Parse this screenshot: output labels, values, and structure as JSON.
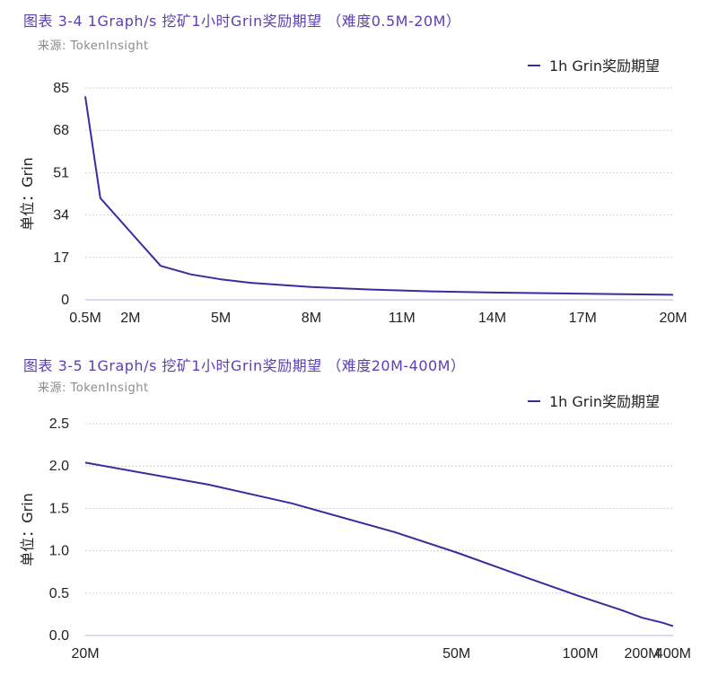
{
  "charts": [
    {
      "title": "图表 3-4 1Graph/s 挖矿1小时Grin奖励期望 （难度0.5M-20M）",
      "source": "来源: TokenInsight"
    },
    {
      "title": "图表 3-5 1Graph/s 挖矿1小时Grin奖励期望 （难度20M-400M）",
      "source": "来源: TokenInsight"
    }
  ],
  "chart_data": [
    {
      "type": "line",
      "title": "图表 3-4 1Graph/s 挖矿1小时Grin奖励期望 （难度0.5M-20M）",
      "xlabel": "",
      "ylabel": "单位：Grin",
      "x_ticks": [
        "0.5M",
        "2M",
        "5M",
        "8M",
        "11M",
        "14M",
        "17M",
        "20M"
      ],
      "y_ticks": [
        "0",
        "17",
        "34",
        "51",
        "68",
        "85"
      ],
      "xlim": [
        0.5,
        20
      ],
      "ylim": [
        0,
        85
      ],
      "grid": true,
      "legend_position": "top-right",
      "line_color": "#3d2b9e",
      "series": [
        {
          "name": "1h Grin奖励期望",
          "x": [
            0.5,
            1,
            2,
            3,
            4,
            5,
            6,
            8,
            10,
            12,
            14,
            16,
            18,
            20
          ],
          "values": [
            81.6,
            40.8,
            27.2,
            13.6,
            10.2,
            8.2,
            6.8,
            5.1,
            4.1,
            3.4,
            2.9,
            2.6,
            2.3,
            2.0
          ]
        }
      ]
    },
    {
      "type": "line",
      "title": "图表 3-5 1Graph/s 挖矿1小时Grin奖励期望 （难度20M-400M）",
      "xlabel": "",
      "ylabel": "单位：Grin",
      "x_ticks": [
        "20M",
        "50M",
        "100M",
        "200M",
        "400M"
      ],
      "y_ticks": [
        "0.0",
        "0.5",
        "1.0",
        "1.5",
        "2.0",
        "2.5"
      ],
      "ylim": [
        0,
        2.5
      ],
      "x_scale": "reciprocal",
      "grid": true,
      "legend_position": "top-right",
      "line_color": "#3d2b9e",
      "series": [
        {
          "name": "1h Grin奖励期望",
          "x": [
            20,
            25,
            30,
            40,
            50,
            70,
            100,
            150,
            200,
            300,
            400
          ],
          "values": [
            2.04,
            1.78,
            1.56,
            1.22,
            0.98,
            0.68,
            0.46,
            0.3,
            0.21,
            0.15,
            0.11
          ]
        }
      ]
    }
  ]
}
